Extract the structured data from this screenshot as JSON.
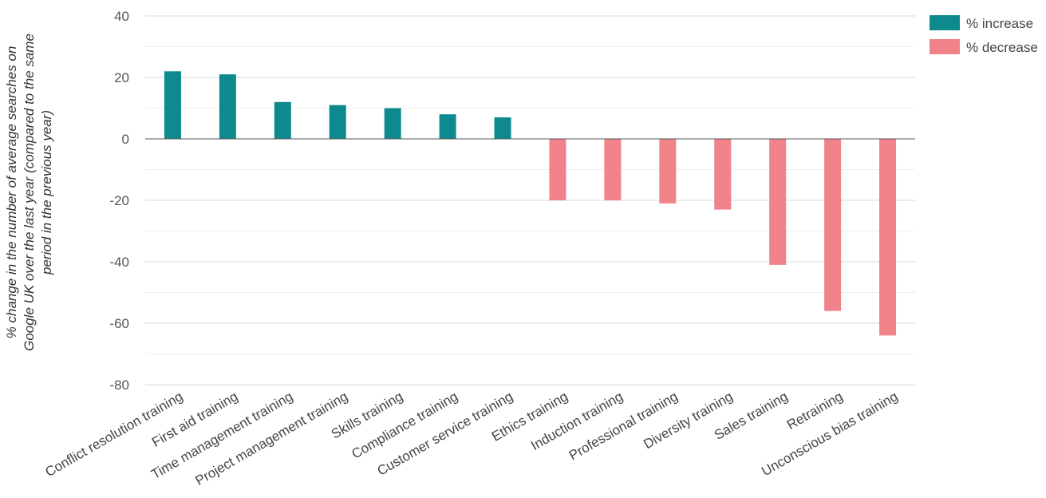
{
  "chart_data": {
    "type": "bar",
    "title": "",
    "xlabel": "",
    "ylabel_lines": [
      "% change in the number of average searches on",
      "Google UK over the last year (compared to the same",
      "period in the previous year)"
    ],
    "ylim": [
      -80,
      40
    ],
    "yticks": [
      40,
      20,
      0,
      -20,
      -40,
      -60,
      -80
    ],
    "grid": true,
    "legend_position": "top-right",
    "colors": {
      "increase": "#0e8a8f",
      "decrease": "#f0828a",
      "grid": "#d9d9d9",
      "minor_grid": "#eeeeee",
      "zero_line": "#555555"
    },
    "legend": [
      {
        "label": "% increase",
        "color_key": "increase"
      },
      {
        "label": "% decrease",
        "color_key": "decrease"
      }
    ],
    "categories": [
      "Conflict resolution training",
      "First aid training",
      "Time management training",
      "Project management training",
      "Skills training",
      "Compliance training",
      "Customer service training",
      "Ethics training",
      "Induction training",
      "Professional training",
      "Diversity training",
      "Sales training",
      "Retraining",
      "Unconscious bias training"
    ],
    "values": [
      22,
      21,
      12,
      11,
      10,
      8,
      7,
      -20,
      -20,
      -21,
      -23,
      -41,
      -56,
      -64
    ]
  }
}
